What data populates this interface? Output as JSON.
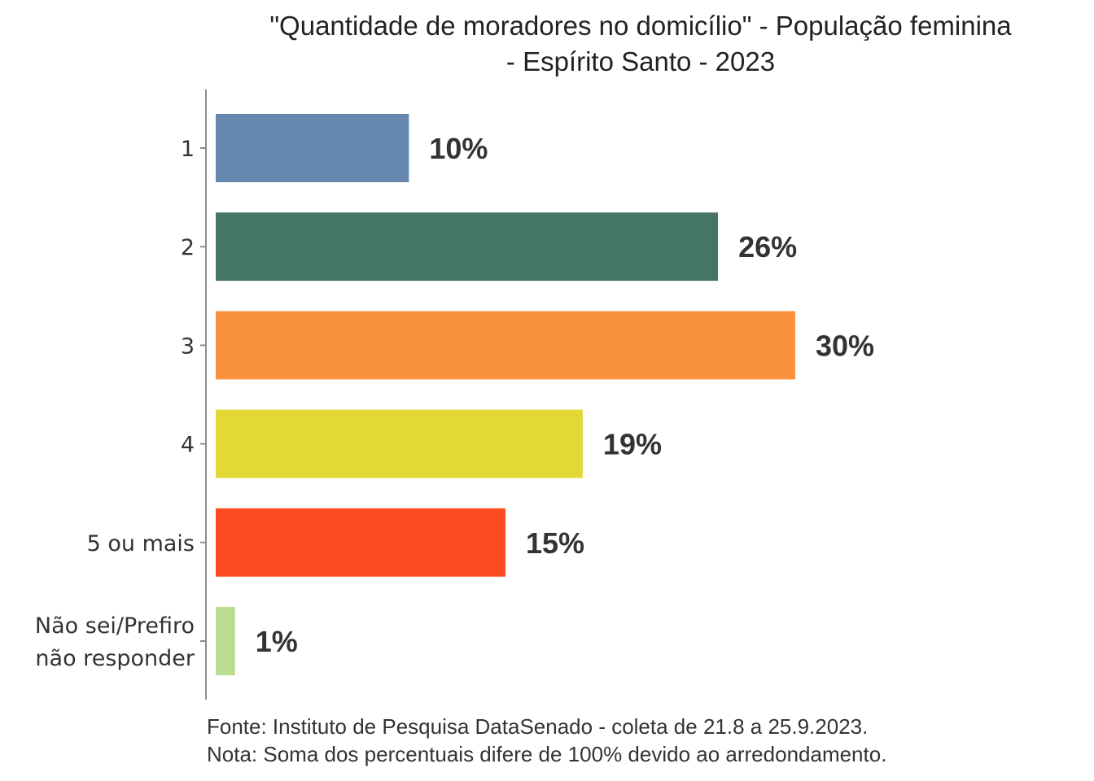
{
  "chart_data": {
    "type": "bar",
    "orientation": "horizontal",
    "title": "\"Quantidade de moradores no domicílio\" - População feminina - Espírito Santo - 2023",
    "title_lines": [
      "\"Quantidade de moradores no domicílio\" - População feminina",
      "- Espírito Santo - 2023"
    ],
    "categories": [
      [
        "1"
      ],
      [
        "2"
      ],
      [
        "3"
      ],
      [
        "4"
      ],
      [
        "5 ou mais"
      ],
      [
        "Não sei/Prefiro",
        "não responder"
      ]
    ],
    "values": [
      10,
      26,
      30,
      19,
      15,
      1
    ],
    "value_labels": [
      "10%",
      "26%",
      "30%",
      "19%",
      "15%",
      "1%"
    ],
    "colors": [
      "#6688ae",
      "#457563",
      "#f9913d",
      "#e4d836",
      "#fe4b21",
      "#badc91"
    ],
    "xlabel": "",
    "ylabel": "",
    "xlim": [
      0,
      30
    ],
    "grid": false,
    "legend": "none"
  },
  "footer": {
    "source": "Fonte: Instituto de Pesquisa DataSenado - coleta de 21.8 a 25.9.2023.",
    "note": "Nota: Soma dos percentuais difere de 100% devido ao arredondamento."
  }
}
